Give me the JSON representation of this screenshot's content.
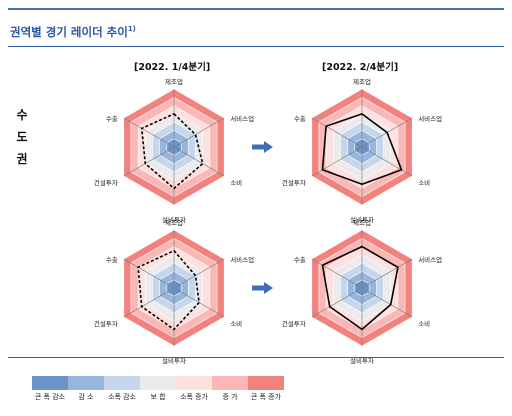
{
  "title": "권역별 경기 레이더 추이",
  "title_footnote": "1)",
  "region_chars": [
    "수",
    "도",
    "권"
  ],
  "quarter_left": "[2022. 1/4분기]",
  "quarter_right": "[2022. 2/4분기]",
  "axes": [
    "제조업",
    "서비스업",
    "소비",
    "설비투자",
    "건설투자",
    "수출"
  ],
  "colors": {
    "ring_levels": [
      "#6b94c8",
      "#98b5dc",
      "#c6d6ec",
      "#ebebeb",
      "#fde0df",
      "#f9b7b5",
      "#f1827e"
    ],
    "arrow": "#3e6db5",
    "title": "#2e56a6"
  },
  "legend": {
    "items": [
      {
        "label": "큰 폭 감소",
        "color": "#6b94c8"
      },
      {
        "label": "감 소",
        "color": "#98b5dc"
      },
      {
        "label": "소폭 감소",
        "color": "#c6d6ec"
      },
      {
        "label": "보 합",
        "color": "#ebebeb"
      },
      {
        "label": "소폭 증가",
        "color": "#fde0df"
      },
      {
        "label": "증 가",
        "color": "#f9b7b5"
      },
      {
        "label": "큰 폭 증가",
        "color": "#f1827e"
      }
    ]
  },
  "chart_data": [
    {
      "type": "radar",
      "row": 1,
      "quarter": "[2022. 1/4분기]",
      "line_style": "dashed",
      "scale": "7-level (큰 폭 감소 to 큰 폭 증가)",
      "axes": [
        "제조업",
        "서비스업",
        "소비",
        "설비투자",
        "건설투자",
        "수출"
      ],
      "values": [
        4.0,
        3.0,
        4.0,
        5.0,
        4.0,
        4.5
      ]
    },
    {
      "type": "radar",
      "row": 1,
      "quarter": "[2022. 2/4분기]",
      "line_style": "solid",
      "scale": "7-level (큰 폭 감소 to 큰 폭 증가)",
      "axes": [
        "제조업",
        "서비스업",
        "소비",
        "설비투자",
        "건설투자",
        "수출"
      ],
      "values": [
        4.0,
        3.5,
        5.5,
        4.5,
        5.5,
        5.0
      ]
    },
    {
      "type": "radar",
      "row": 2,
      "quarter": "[2022. 1/4분기]",
      "line_style": "dashed",
      "scale": "7-level (큰 폭 감소 to 큰 폭 증가)",
      "axes": [
        "제조업",
        "서비스업",
        "소비",
        "설비투자",
        "건설투자",
        "수출"
      ],
      "values": [
        4.5,
        3.0,
        3.5,
        5.0,
        4.5,
        5.0
      ]
    },
    {
      "type": "radar",
      "row": 2,
      "quarter": "[2022. 2/4분기]",
      "line_style": "solid",
      "scale": "7-level (큰 폭 감소 to 큰 폭 증가)",
      "axes": [
        "제조업",
        "서비스업",
        "소비",
        "설비투자",
        "건설투자",
        "수출"
      ],
      "values": [
        5.0,
        5.0,
        4.0,
        5.0,
        4.5,
        5.5
      ]
    }
  ]
}
